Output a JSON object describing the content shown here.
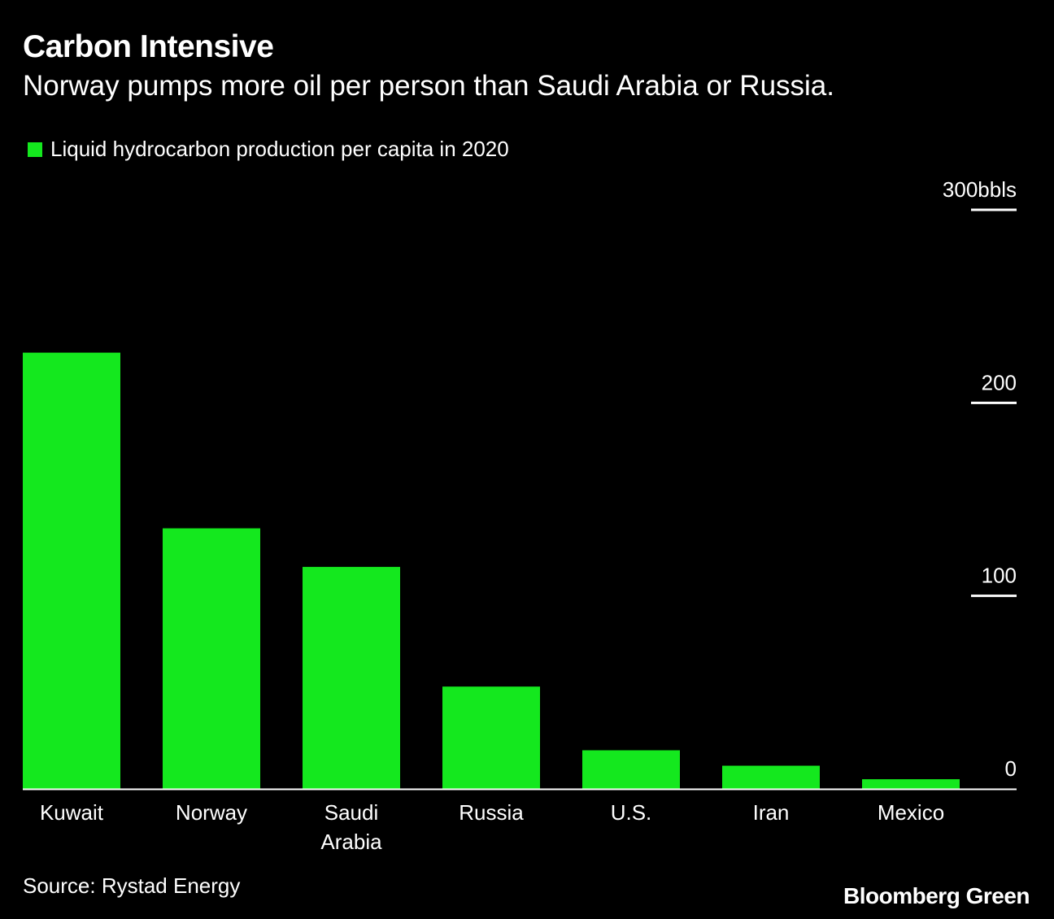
{
  "header": {
    "title": "Carbon Intensive",
    "subtitle": "Norway pumps more oil per person than Saudi Arabia or Russia."
  },
  "legend": {
    "label": "Liquid hydrocarbon production per capita in 2020",
    "color": "#14e81e"
  },
  "footer": {
    "source": "Source: Rystad Energy",
    "brand": "Bloomberg Green"
  },
  "chart_data": {
    "type": "bar",
    "title": "Carbon Intensive",
    "subtitle": "Norway pumps more oil per person than Saudi Arabia or Russia.",
    "categories": [
      [
        "Kuwait"
      ],
      [
        "Norway"
      ],
      [
        "Saudi",
        "Arabia"
      ],
      [
        "Russia"
      ],
      [
        "U.S."
      ],
      [
        "Iran"
      ],
      [
        "Mexico"
      ]
    ],
    "series": [
      {
        "name": "Liquid hydrocarbon production per capita in 2020",
        "color": "#14e81e",
        "values": [
          226,
          135,
          115,
          53,
          20,
          12,
          5
        ]
      }
    ],
    "ylim": [
      0,
      300
    ],
    "yticks": [
      0,
      100,
      200,
      300
    ],
    "ytick_labels": [
      "0",
      "100",
      "200",
      "300bbls"
    ],
    "y_axis_side": "right",
    "grid": false,
    "legend_position": "top-left"
  }
}
